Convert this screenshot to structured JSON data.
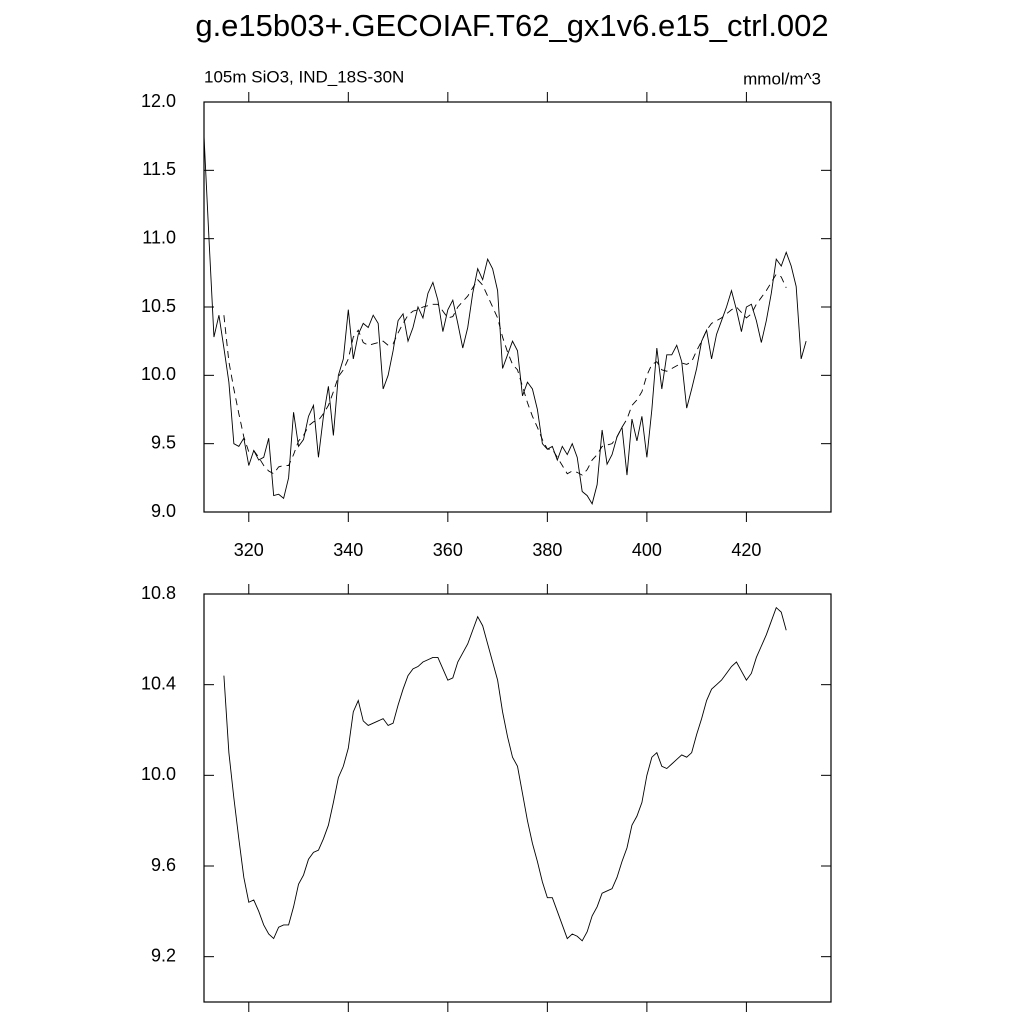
{
  "title": "g.e15b03+.GECOIAF.T62_gx1v6.e15_ctrl.002",
  "chart_data": [
    {
      "type": "line",
      "subtitle_left": "105m SiO3, IND_18S-30N",
      "subtitle_right": "mmol/m^3",
      "x": [
        311,
        312,
        313,
        314,
        315,
        316,
        317,
        318,
        319,
        320,
        321,
        322,
        323,
        324,
        325,
        326,
        327,
        328,
        329,
        330,
        331,
        332,
        333,
        334,
        335,
        336,
        337,
        338,
        339,
        340,
        341,
        342,
        343,
        344,
        345,
        346,
        347,
        348,
        349,
        350,
        351,
        352,
        353,
        354,
        355,
        356,
        357,
        358,
        359,
        360,
        361,
        362,
        363,
        364,
        365,
        366,
        367,
        368,
        369,
        370,
        371,
        372,
        373,
        374,
        375,
        376,
        377,
        378,
        379,
        380,
        381,
        382,
        383,
        384,
        385,
        386,
        387,
        388,
        389,
        390,
        391,
        392,
        393,
        394,
        395,
        396,
        397,
        398,
        399,
        400,
        401,
        402,
        403,
        404,
        405,
        406,
        407,
        408,
        409,
        410,
        411,
        412,
        413,
        414,
        415,
        416,
        417,
        418,
        419,
        420,
        421,
        422,
        423,
        424,
        425,
        426,
        427,
        428,
        429,
        430,
        431,
        432
      ],
      "series": [
        {
          "color": "#000000",
          "dashed": false,
          "values": [
            11.75,
            11.0,
            10.28,
            10.44,
            10.2,
            9.95,
            9.5,
            9.48,
            9.54,
            9.34,
            9.45,
            9.38,
            9.4,
            9.54,
            9.12,
            9.13,
            9.1,
            9.25,
            9.73,
            9.48,
            9.53,
            9.7,
            9.78,
            9.4,
            9.7,
            9.92,
            9.56,
            10.0,
            10.12,
            10.48,
            10.12,
            10.3,
            10.38,
            10.35,
            10.44,
            10.38,
            9.9,
            10.0,
            10.18,
            10.4,
            10.45,
            10.25,
            10.35,
            10.5,
            10.42,
            10.6,
            10.68,
            10.55,
            10.32,
            10.48,
            10.55,
            10.38,
            10.2,
            10.35,
            10.6,
            10.78,
            10.7,
            10.85,
            10.78,
            10.62,
            10.05,
            10.15,
            10.25,
            10.18,
            9.85,
            9.95,
            9.9,
            9.75,
            9.5,
            9.46,
            9.48,
            9.38,
            9.48,
            9.42,
            9.5,
            9.4,
            9.15,
            9.12,
            9.06,
            9.2,
            9.6,
            9.35,
            9.42,
            9.55,
            9.62,
            9.27,
            9.68,
            9.52,
            9.7,
            9.4,
            9.75,
            10.2,
            9.9,
            10.15,
            10.15,
            10.22,
            10.1,
            9.76,
            9.9,
            10.05,
            10.25,
            10.33,
            10.12,
            10.3,
            10.4,
            10.5,
            10.62,
            10.48,
            10.32,
            10.5,
            10.52,
            10.4,
            10.24,
            10.4,
            10.6,
            10.85,
            10.8,
            10.9,
            10.8,
            10.65,
            10.12,
            10.25
          ]
        },
        {
          "color": "#000000",
          "dashed": true,
          "values": [
            null,
            null,
            null,
            null,
            10.44,
            10.1,
            9.9,
            9.72,
            9.55,
            9.44,
            9.45,
            9.4,
            9.34,
            9.3,
            9.28,
            9.33,
            9.34,
            9.34,
            9.42,
            9.52,
            9.56,
            9.63,
            9.66,
            9.67,
            9.72,
            9.78,
            9.88,
            9.99,
            10.04,
            10.12,
            10.28,
            10.33,
            10.24,
            10.22,
            10.23,
            10.24,
            10.25,
            10.22,
            10.23,
            10.31,
            10.38,
            10.44,
            10.47,
            10.48,
            10.5,
            10.51,
            10.52,
            10.52,
            10.47,
            10.42,
            10.43,
            10.5,
            10.54,
            10.58,
            10.64,
            10.7,
            10.66,
            10.58,
            10.5,
            10.42,
            10.28,
            10.17,
            10.08,
            10.04,
            9.92,
            9.8,
            9.7,
            9.62,
            9.53,
            9.46,
            9.46,
            9.4,
            9.34,
            9.28,
            9.3,
            9.29,
            9.27,
            9.31,
            9.38,
            9.42,
            9.48,
            9.49,
            9.5,
            9.55,
            9.62,
            9.68,
            9.78,
            9.82,
            9.88,
            10.0,
            10.08,
            10.1,
            10.04,
            10.03,
            10.05,
            10.07,
            10.09,
            10.08,
            10.1,
            10.18,
            10.25,
            10.33,
            10.38,
            10.4,
            10.42,
            10.45,
            10.48,
            10.5,
            10.46,
            10.42,
            10.45,
            10.52,
            10.57,
            10.62,
            10.68,
            10.74,
            10.72,
            10.64,
            null,
            null,
            null,
            null
          ]
        }
      ],
      "xlim": [
        311,
        437
      ],
      "xticks": [
        320,
        340,
        360,
        380,
        400,
        420
      ],
      "xtick_labels": true,
      "ylim": [
        9.0,
        12.0
      ],
      "yticks": [
        {
          "value": 9.0,
          "label": "9.0"
        },
        9.5,
        {
          "value": 10.0,
          "label": "10.0"
        },
        10.5,
        {
          "value": 11.0,
          "label": "11.0"
        },
        11.5,
        {
          "value": 12.0,
          "label": "12.0"
        }
      ]
    },
    {
      "type": "line",
      "x": [
        311,
        312,
        313,
        314,
        315,
        316,
        317,
        318,
        319,
        320,
        321,
        322,
        323,
        324,
        325,
        326,
        327,
        328,
        329,
        330,
        331,
        332,
        333,
        334,
        335,
        336,
        337,
        338,
        339,
        340,
        341,
        342,
        343,
        344,
        345,
        346,
        347,
        348,
        349,
        350,
        351,
        352,
        353,
        354,
        355,
        356,
        357,
        358,
        359,
        360,
        361,
        362,
        363,
        364,
        365,
        366,
        367,
        368,
        369,
        370,
        371,
        372,
        373,
        374,
        375,
        376,
        377,
        378,
        379,
        380,
        381,
        382,
        383,
        384,
        385,
        386,
        387,
        388,
        389,
        390,
        391,
        392,
        393,
        394,
        395,
        396,
        397,
        398,
        399,
        400,
        401,
        402,
        403,
        404,
        405,
        406,
        407,
        408,
        409,
        410,
        411,
        412,
        413,
        414,
        415,
        416,
        417,
        418,
        419,
        420,
        421,
        422,
        423,
        424,
        425,
        426,
        427,
        428,
        429,
        430,
        431,
        432
      ],
      "series": [
        {
          "color": "#000000",
          "dashed": false,
          "values": [
            null,
            null,
            null,
            null,
            10.44,
            10.1,
            9.9,
            9.72,
            9.55,
            9.44,
            9.45,
            9.4,
            9.34,
            9.3,
            9.28,
            9.33,
            9.34,
            9.34,
            9.42,
            9.52,
            9.56,
            9.63,
            9.66,
            9.67,
            9.72,
            9.78,
            9.88,
            9.99,
            10.04,
            10.12,
            10.28,
            10.33,
            10.24,
            10.22,
            10.23,
            10.24,
            10.25,
            10.22,
            10.23,
            10.31,
            10.38,
            10.44,
            10.47,
            10.48,
            10.5,
            10.51,
            10.52,
            10.52,
            10.47,
            10.42,
            10.43,
            10.5,
            10.54,
            10.58,
            10.64,
            10.7,
            10.66,
            10.58,
            10.5,
            10.42,
            10.28,
            10.17,
            10.08,
            10.04,
            9.92,
            9.8,
            9.7,
            9.62,
            9.53,
            9.46,
            9.46,
            9.4,
            9.34,
            9.28,
            9.3,
            9.29,
            9.27,
            9.31,
            9.38,
            9.42,
            9.48,
            9.49,
            9.5,
            9.55,
            9.62,
            9.68,
            9.78,
            9.82,
            9.88,
            10.0,
            10.08,
            10.1,
            10.04,
            10.03,
            10.05,
            10.07,
            10.09,
            10.08,
            10.1,
            10.18,
            10.25,
            10.33,
            10.38,
            10.4,
            10.42,
            10.45,
            10.48,
            10.5,
            10.46,
            10.42,
            10.45,
            10.52,
            10.57,
            10.62,
            10.68,
            10.74,
            10.72,
            10.64,
            null,
            null,
            null,
            null
          ]
        }
      ],
      "xlim": [
        311,
        437
      ],
      "xticks": [
        320,
        340,
        360,
        380,
        400,
        420
      ],
      "xtick_labels": false,
      "ylim": [
        9.0,
        10.8
      ],
      "yticks": [
        9.2,
        9.6,
        {
          "value": 10.0,
          "label": "10.0"
        },
        10.4,
        10.8
      ]
    }
  ]
}
